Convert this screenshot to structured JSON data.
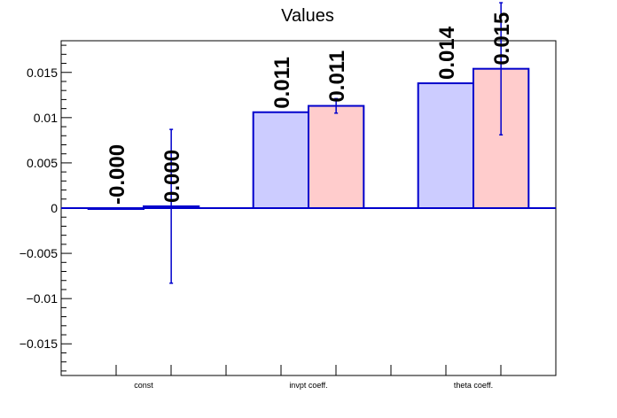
{
  "chart_data": {
    "type": "bar",
    "title": "Values",
    "xlabel": "",
    "ylabel": "",
    "categories": [
      "const",
      "invpt coeff.",
      "theta coeff."
    ],
    "ylim": [
      -0.0185,
      0.0185
    ],
    "y_ticks": [
      -0.015,
      -0.01,
      -0.005,
      0,
      0.005,
      0.01,
      0.015
    ],
    "y_tick_labels": [
      "−0.015",
      "−0.01",
      "−0.005",
      "0",
      "0.005",
      "0.01",
      "0.015"
    ],
    "grid": false,
    "series": [
      {
        "values": [
          0.0,
          0.0106,
          0.0138
        ],
        "labels": [
          "-0.000",
          "0.011",
          "0.014"
        ],
        "errors": null,
        "fill": "#ccccff",
        "stroke": "#0000cc"
      },
      {
        "values": [
          0.0002,
          0.0113,
          0.0154
        ],
        "labels": [
          "0.000",
          "0.011",
          "0.015"
        ],
        "errors": [
          0.0085,
          0.0008,
          0.0073
        ],
        "fill": "#ffcccc",
        "stroke": "#0000cc"
      }
    ]
  }
}
